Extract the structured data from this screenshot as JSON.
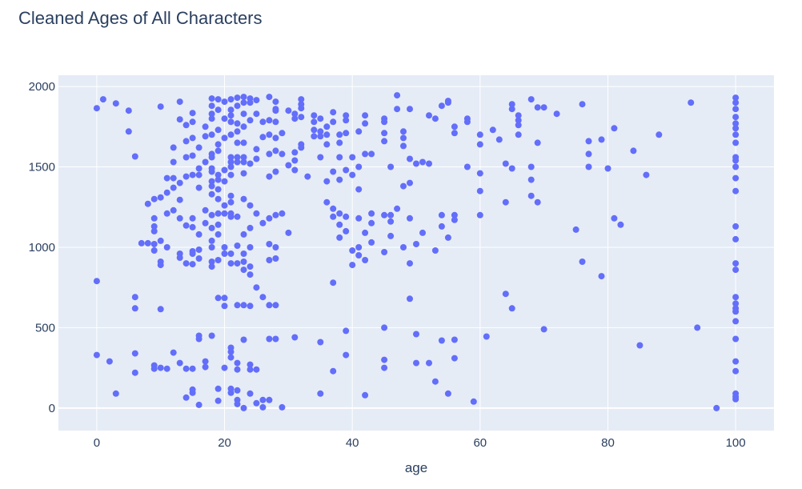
{
  "chart_data": {
    "type": "scatter",
    "title": "Cleaned Ages of All Characters",
    "xlabel": "age",
    "ylabel": "",
    "xlim": [
      -6,
      106
    ],
    "ylim": [
      -140,
      2070
    ],
    "x_ticks": [
      0,
      20,
      40,
      60,
      80,
      100
    ],
    "y_ticks": [
      0,
      500,
      1000,
      1500,
      2000
    ],
    "grid": true,
    "legend": "none",
    "colors": {
      "marker": "#636efa",
      "plot_bg": "#e5ecf6",
      "grid": "#ffffff",
      "text": "#2a3f5f"
    },
    "points": [
      [
        0,
        1865
      ],
      [
        1,
        1920
      ],
      [
        3,
        1895
      ],
      [
        5,
        1850
      ],
      [
        5,
        1720
      ],
      [
        6,
        1565
      ],
      [
        0,
        790
      ],
      [
        6,
        690
      ],
      [
        6,
        620
      ],
      [
        6,
        340
      ],
      [
        0,
        330
      ],
      [
        2,
        290
      ],
      [
        6,
        220
      ],
      [
        3,
        90
      ],
      [
        7,
        1025
      ],
      [
        8,
        1270
      ],
      [
        8,
        1025
      ],
      [
        9,
        1180
      ],
      [
        9,
        1130
      ],
      [
        9,
        1100
      ],
      [
        9,
        1020
      ],
      [
        9,
        980
      ],
      [
        9,
        1300
      ],
      [
        9,
        265
      ],
      [
        9,
        245
      ],
      [
        10,
        1875
      ],
      [
        10,
        1310
      ],
      [
        10,
        1040
      ],
      [
        10,
        910
      ],
      [
        10,
        890
      ],
      [
        10,
        615
      ],
      [
        10,
        250
      ],
      [
        11,
        1430
      ],
      [
        11,
        1340
      ],
      [
        11,
        1210
      ],
      [
        11,
        1000
      ],
      [
        11,
        245
      ],
      [
        12,
        1620
      ],
      [
        12,
        1530
      ],
      [
        12,
        1430
      ],
      [
        12,
        1370
      ],
      [
        12,
        1230
      ],
      [
        12,
        345
      ],
      [
        13,
        1905
      ],
      [
        13,
        1795
      ],
      [
        13,
        1400
      ],
      [
        13,
        1295
      ],
      [
        13,
        1180
      ],
      [
        13,
        960
      ],
      [
        13,
        935
      ],
      [
        13,
        280
      ],
      [
        14,
        1760
      ],
      [
        14,
        1660
      ],
      [
        14,
        1560
      ],
      [
        14,
        1440
      ],
      [
        14,
        1135
      ],
      [
        14,
        900
      ],
      [
        14,
        245
      ],
      [
        14,
        65
      ],
      [
        15,
        1835
      ],
      [
        15,
        1780
      ],
      [
        15,
        1680
      ],
      [
        15,
        1570
      ],
      [
        15,
        1450
      ],
      [
        15,
        1180
      ],
      [
        15,
        1125
      ],
      [
        15,
        975
      ],
      [
        15,
        960
      ],
      [
        15,
        895
      ],
      [
        15,
        245
      ],
      [
        15,
        115
      ],
      [
        15,
        95
      ],
      [
        16,
        1620
      ],
      [
        16,
        1490
      ],
      [
        16,
        1450
      ],
      [
        16,
        1370
      ],
      [
        16,
        1080
      ],
      [
        16,
        985
      ],
      [
        16,
        930
      ],
      [
        16,
        450
      ],
      [
        16,
        430
      ],
      [
        16,
        20
      ],
      [
        17,
        1750
      ],
      [
        17,
        1690
      ],
      [
        17,
        1530
      ],
      [
        17,
        1230
      ],
      [
        17,
        1150
      ],
      [
        17,
        290
      ],
      [
        17,
        255
      ],
      [
        18,
        1925
      ],
      [
        18,
        1880
      ],
      [
        18,
        1830
      ],
      [
        18,
        1800
      ],
      [
        18,
        1700
      ],
      [
        18,
        1580
      ],
      [
        18,
        1560
      ],
      [
        18,
        1490
      ],
      [
        18,
        1470
      ],
      [
        18,
        1410
      ],
      [
        18,
        1380
      ],
      [
        18,
        1330
      ],
      [
        18,
        1200
      ],
      [
        18,
        1120
      ],
      [
        18,
        1040
      ],
      [
        18,
        1000
      ],
      [
        18,
        910
      ],
      [
        18,
        880
      ],
      [
        18,
        450
      ],
      [
        19,
        1920
      ],
      [
        19,
        1855
      ],
      [
        19,
        1730
      ],
      [
        19,
        1640
      ],
      [
        19,
        1600
      ],
      [
        19,
        1450
      ],
      [
        19,
        1420
      ],
      [
        19,
        1360
      ],
      [
        19,
        1300
      ],
      [
        19,
        1210
      ],
      [
        19,
        1140
      ],
      [
        19,
        1080
      ],
      [
        19,
        920
      ],
      [
        19,
        685
      ],
      [
        19,
        120
      ],
      [
        19,
        45
      ],
      [
        20,
        1905
      ],
      [
        20,
        1800
      ],
      [
        20,
        1680
      ],
      [
        20,
        1480
      ],
      [
        20,
        1410
      ],
      [
        20,
        1260
      ],
      [
        20,
        1210
      ],
      [
        20,
        1000
      ],
      [
        20,
        960
      ],
      [
        20,
        685
      ],
      [
        20,
        635
      ],
      [
        20,
        250
      ],
      [
        21,
        1920
      ],
      [
        21,
        1855
      ],
      [
        21,
        1820
      ],
      [
        21,
        1780
      ],
      [
        21,
        1700
      ],
      [
        21,
        1560
      ],
      [
        21,
        1530
      ],
      [
        21,
        1500
      ],
      [
        21,
        1450
      ],
      [
        21,
        1320
      ],
      [
        21,
        1280
      ],
      [
        21,
        1210
      ],
      [
        21,
        1190
      ],
      [
        21,
        960
      ],
      [
        21,
        900
      ],
      [
        21,
        375
      ],
      [
        21,
        350
      ],
      [
        21,
        315
      ],
      [
        21,
        120
      ],
      [
        21,
        95
      ],
      [
        22,
        1930
      ],
      [
        22,
        1880
      ],
      [
        22,
        1770
      ],
      [
        22,
        1720
      ],
      [
        22,
        1650
      ],
      [
        22,
        1560
      ],
      [
        22,
        1530
      ],
      [
        22,
        1190
      ],
      [
        22,
        1010
      ],
      [
        22,
        900
      ],
      [
        22,
        640
      ],
      [
        22,
        280
      ],
      [
        22,
        240
      ],
      [
        22,
        110
      ],
      [
        22,
        50
      ],
      [
        22,
        25
      ],
      [
        23,
        1935
      ],
      [
        23,
        1900
      ],
      [
        23,
        1830
      ],
      [
        23,
        1750
      ],
      [
        23,
        1650
      ],
      [
        23,
        1560
      ],
      [
        23,
        1530
      ],
      [
        23,
        1460
      ],
      [
        23,
        1300
      ],
      [
        23,
        1080
      ],
      [
        23,
        960
      ],
      [
        23,
        910
      ],
      [
        23,
        860
      ],
      [
        23,
        640
      ],
      [
        23,
        425
      ],
      [
        23,
        0
      ],
      [
        24,
        1925
      ],
      [
        24,
        1900
      ],
      [
        24,
        1790
      ],
      [
        24,
        1520
      ],
      [
        24,
        1260
      ],
      [
        24,
        1120
      ],
      [
        24,
        1000
      ],
      [
        24,
        880
      ],
      [
        24,
        830
      ],
      [
        24,
        635
      ],
      [
        24,
        270
      ],
      [
        24,
        240
      ],
      [
        24,
        90
      ],
      [
        25,
        1915
      ],
      [
        25,
        1830
      ],
      [
        25,
        1610
      ],
      [
        25,
        1550
      ],
      [
        25,
        1210
      ],
      [
        25,
        750
      ],
      [
        25,
        240
      ],
      [
        25,
        30
      ],
      [
        26,
        1780
      ],
      [
        26,
        1685
      ],
      [
        26,
        1150
      ],
      [
        26,
        690
      ],
      [
        26,
        50
      ],
      [
        26,
        5
      ],
      [
        27,
        1935
      ],
      [
        27,
        1790
      ],
      [
        27,
        1700
      ],
      [
        27,
        1580
      ],
      [
        27,
        1440
      ],
      [
        27,
        1180
      ],
      [
        27,
        1020
      ],
      [
        27,
        920
      ],
      [
        27,
        640
      ],
      [
        27,
        430
      ],
      [
        27,
        50
      ],
      [
        28,
        1905
      ],
      [
        28,
        1860
      ],
      [
        28,
        1850
      ],
      [
        28,
        1780
      ],
      [
        28,
        1680
      ],
      [
        28,
        1600
      ],
      [
        28,
        1470
      ],
      [
        28,
        1200
      ],
      [
        28,
        1000
      ],
      [
        28,
        930
      ],
      [
        28,
        640
      ],
      [
        28,
        430
      ],
      [
        29,
        1710
      ],
      [
        29,
        1580
      ],
      [
        29,
        1210
      ],
      [
        29,
        5
      ],
      [
        30,
        1850
      ],
      [
        30,
        1510
      ],
      [
        30,
        1090
      ],
      [
        31,
        1830
      ],
      [
        31,
        1800
      ],
      [
        31,
        1590
      ],
      [
        31,
        1540
      ],
      [
        31,
        1480
      ],
      [
        31,
        440
      ],
      [
        32,
        1920
      ],
      [
        32,
        1890
      ],
      [
        32,
        1865
      ],
      [
        32,
        1810
      ],
      [
        32,
        1640
      ],
      [
        32,
        1620
      ],
      [
        33,
        1440
      ],
      [
        34,
        1820
      ],
      [
        34,
        1780
      ],
      [
        34,
        1730
      ],
      [
        34,
        1690
      ],
      [
        35,
        1800
      ],
      [
        35,
        1720
      ],
      [
        35,
        1690
      ],
      [
        35,
        1560
      ],
      [
        35,
        410
      ],
      [
        35,
        90
      ],
      [
        36,
        1750
      ],
      [
        36,
        1700
      ],
      [
        36,
        1640
      ],
      [
        36,
        1410
      ],
      [
        36,
        1280
      ],
      [
        37,
        1840
      ],
      [
        37,
        1780
      ],
      [
        37,
        1470
      ],
      [
        37,
        1240
      ],
      [
        37,
        1190
      ],
      [
        37,
        780
      ],
      [
        37,
        230
      ],
      [
        38,
        1700
      ],
      [
        38,
        1650
      ],
      [
        38,
        1560
      ],
      [
        38,
        1420
      ],
      [
        38,
        1210
      ],
      [
        38,
        1140
      ],
      [
        38,
        1060
      ],
      [
        39,
        1820
      ],
      [
        39,
        1790
      ],
      [
        39,
        1710
      ],
      [
        39,
        1480
      ],
      [
        39,
        1190
      ],
      [
        39,
        1100
      ],
      [
        39,
        480
      ],
      [
        39,
        330
      ],
      [
        40,
        1560
      ],
      [
        40,
        1450
      ],
      [
        40,
        980
      ],
      [
        40,
        890
      ],
      [
        41,
        1720
      ],
      [
        41,
        1500
      ],
      [
        41,
        1360
      ],
      [
        41,
        1180
      ],
      [
        41,
        1000
      ],
      [
        41,
        950
      ],
      [
        42,
        1820
      ],
      [
        42,
        1770
      ],
      [
        42,
        1580
      ],
      [
        42,
        1090
      ],
      [
        42,
        920
      ],
      [
        42,
        80
      ],
      [
        43,
        1580
      ],
      [
        43,
        1210
      ],
      [
        43,
        1150
      ],
      [
        43,
        1030
      ],
      [
        45,
        1800
      ],
      [
        45,
        1780
      ],
      [
        45,
        1710
      ],
      [
        45,
        1660
      ],
      [
        45,
        1200
      ],
      [
        45,
        970
      ],
      [
        45,
        500
      ],
      [
        45,
        300
      ],
      [
        45,
        250
      ],
      [
        46,
        1500
      ],
      [
        46,
        1200
      ],
      [
        46,
        1160
      ],
      [
        46,
        1070
      ],
      [
        47,
        1945
      ],
      [
        47,
        1860
      ],
      [
        47,
        1240
      ],
      [
        48,
        1720
      ],
      [
        48,
        1680
      ],
      [
        48,
        1630
      ],
      [
        48,
        1380
      ],
      [
        48,
        1000
      ],
      [
        49,
        1860
      ],
      [
        49,
        1550
      ],
      [
        49,
        1400
      ],
      [
        49,
        1180
      ],
      [
        49,
        900
      ],
      [
        49,
        680
      ],
      [
        50,
        1520
      ],
      [
        50,
        1020
      ],
      [
        50,
        460
      ],
      [
        50,
        280
      ],
      [
        51,
        1530
      ],
      [
        51,
        1090
      ],
      [
        52,
        1820
      ],
      [
        52,
        1520
      ],
      [
        52,
        280
      ],
      [
        53,
        1800
      ],
      [
        53,
        980
      ],
      [
        53,
        165
      ],
      [
        54,
        1880
      ],
      [
        54,
        1200
      ],
      [
        54,
        1130
      ],
      [
        54,
        420
      ],
      [
        55,
        1910
      ],
      [
        55,
        1900
      ],
      [
        55,
        1060
      ],
      [
        55,
        90
      ],
      [
        56,
        1750
      ],
      [
        56,
        1710
      ],
      [
        56,
        1200
      ],
      [
        56,
        1170
      ],
      [
        56,
        425
      ],
      [
        56,
        310
      ],
      [
        58,
        1800
      ],
      [
        58,
        1780
      ],
      [
        58,
        1500
      ],
      [
        59,
        40
      ],
      [
        60,
        1700
      ],
      [
        60,
        1640
      ],
      [
        60,
        1460
      ],
      [
        60,
        1350
      ],
      [
        60,
        1200
      ],
      [
        61,
        445
      ],
      [
        62,
        1730
      ],
      [
        63,
        1670
      ],
      [
        64,
        1520
      ],
      [
        64,
        1280
      ],
      [
        64,
        710
      ],
      [
        65,
        1890
      ],
      [
        65,
        1860
      ],
      [
        65,
        1490
      ],
      [
        65,
        620
      ],
      [
        66,
        1820
      ],
      [
        66,
        1790
      ],
      [
        66,
        1760
      ],
      [
        66,
        1700
      ],
      [
        68,
        1920
      ],
      [
        68,
        1500
      ],
      [
        68,
        1420
      ],
      [
        68,
        1320
      ],
      [
        69,
        1870
      ],
      [
        69,
        1650
      ],
      [
        69,
        1280
      ],
      [
        70,
        1870
      ],
      [
        70,
        490
      ],
      [
        72,
        1830
      ],
      [
        75,
        1110
      ],
      [
        76,
        1890
      ],
      [
        76,
        910
      ],
      [
        77,
        1660
      ],
      [
        77,
        1580
      ],
      [
        77,
        1500
      ],
      [
        79,
        1670
      ],
      [
        79,
        820
      ],
      [
        80,
        1490
      ],
      [
        81,
        1740
      ],
      [
        81,
        1180
      ],
      [
        82,
        1140
      ],
      [
        84,
        1600
      ],
      [
        85,
        390
      ],
      [
        86,
        1450
      ],
      [
        88,
        1700
      ],
      [
        93,
        1900
      ],
      [
        94,
        500
      ],
      [
        97,
        0
      ],
      [
        100,
        1930
      ],
      [
        100,
        1900
      ],
      [
        100,
        1860
      ],
      [
        100,
        1810
      ],
      [
        100,
        1770
      ],
      [
        100,
        1740
      ],
      [
        100,
        1700
      ],
      [
        100,
        1650
      ],
      [
        100,
        1560
      ],
      [
        100,
        1540
      ],
      [
        100,
        1500
      ],
      [
        100,
        1430
      ],
      [
        100,
        1350
      ],
      [
        100,
        1130
      ],
      [
        100,
        1050
      ],
      [
        100,
        900
      ],
      [
        100,
        860
      ],
      [
        100,
        690
      ],
      [
        100,
        650
      ],
      [
        100,
        620
      ],
      [
        100,
        600
      ],
      [
        100,
        540
      ],
      [
        100,
        430
      ],
      [
        100,
        290
      ],
      [
        100,
        230
      ],
      [
        100,
        90
      ],
      [
        100,
        70
      ],
      [
        100,
        55
      ]
    ]
  }
}
